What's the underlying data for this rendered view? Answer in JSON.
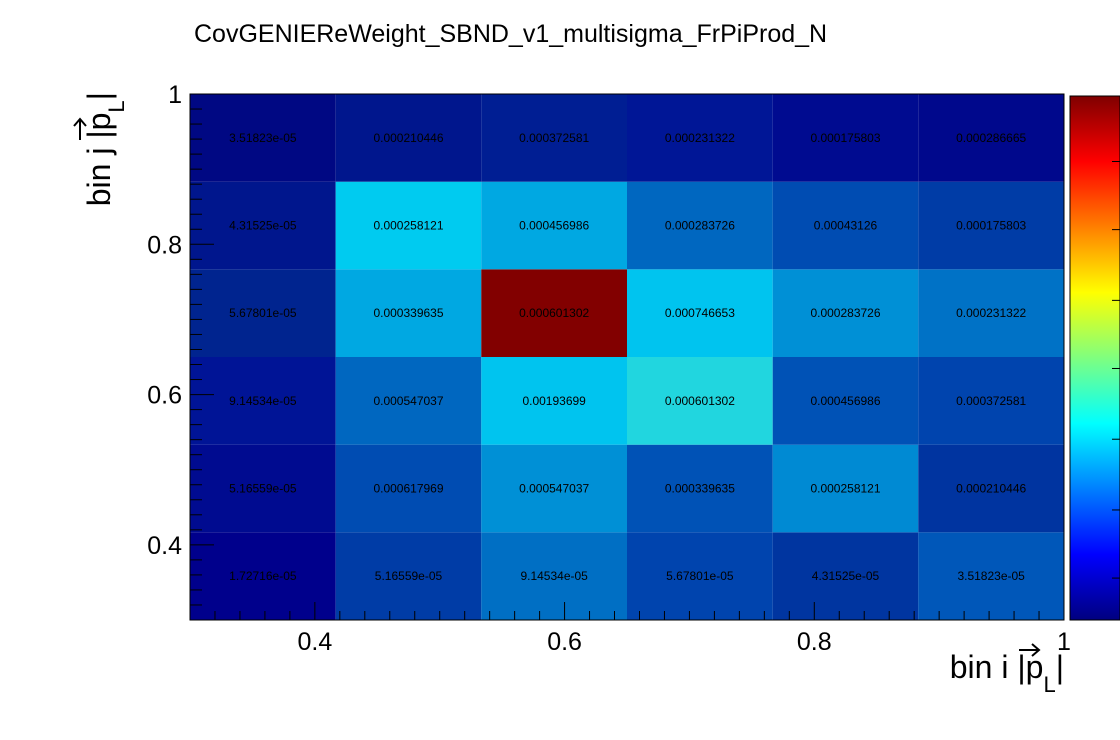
{
  "chart_data": {
    "type": "heatmap",
    "title": "CovGENIEReWeight_SBND_v1_multisigma_FrPiProd_N",
    "xlabel": {
      "main": "bin i |",
      "vec": "p",
      "sub": "L",
      "end": "|"
    },
    "ylabel": {
      "main": "bin j |",
      "vec": "p",
      "sub": "L",
      "end": "|"
    },
    "x_edges": [
      0.3,
      0.4167,
      0.5333,
      0.65,
      0.7667,
      0.8833,
      1.0
    ],
    "y_edges": [
      0.3,
      0.4167,
      0.5333,
      0.65,
      0.7667,
      0.8833,
      1.0
    ],
    "xlim": [
      0.3,
      1.0
    ],
    "ylim": [
      0.3,
      1.0
    ],
    "x_ticks": [
      {
        "value": 0.4,
        "label": "0.4"
      },
      {
        "value": 0.6,
        "label": "0.6"
      },
      {
        "value": 0.8,
        "label": "0.8"
      },
      {
        "value": 1.0,
        "label": "1"
      }
    ],
    "y_ticks": [
      {
        "value": 0.4,
        "label": "0.4"
      },
      {
        "value": 0.6,
        "label": "0.6"
      },
      {
        "value": 0.8,
        "label": "0.8"
      },
      {
        "value": 1.0,
        "label": "1"
      }
    ],
    "z_range": [
      0,
      0.002
    ],
    "values": [
      [
        1.72716e-05,
        5.16559e-05,
        9.14534e-05,
        5.67801e-05,
        4.31525e-05,
        3.51823e-05
      ],
      [
        5.16559e-05,
        0.000617969,
        0.000547037,
        0.000339635,
        0.000258121,
        0.000210446
      ],
      [
        9.14534e-05,
        0.000547037,
        0.00193699,
        0.000601302,
        0.000456986,
        0.000372581
      ],
      [
        5.67801e-05,
        0.000339635,
        0.000601302,
        0.000746653,
        0.000283726,
        0.000231322
      ],
      [
        4.31525e-05,
        0.000258121,
        0.000456986,
        0.000283726,
        0.00043126,
        0.000175803
      ],
      [
        3.51823e-05,
        0.000210446,
        0.000372581,
        0.000231322,
        0.000175803,
        0.000286665
      ]
    ],
    "cell_labels": [
      [
        "1.72716e-05",
        "5.16559e-05",
        "9.14534e-05",
        "5.67801e-05",
        "4.31525e-05",
        "3.51823e-05"
      ],
      [
        "5.16559e-05",
        "0.000617969",
        "0.000547037",
        "0.000339635",
        "0.000258121",
        "0.000210446"
      ],
      [
        "9.14534e-05",
        "0.000547037",
        "0.00193699",
        "0.000601302",
        "0.000456986",
        "0.000372581"
      ],
      [
        "5.67801e-05",
        "0.000339635",
        "0.000601302",
        "0.000746653",
        "0.000283726",
        "0.000231322"
      ],
      [
        "4.31525e-05",
        "0.000258121",
        "0.000456986",
        "0.000283726",
        "0.00043126",
        "0.000175803"
      ],
      [
        "3.51823e-05",
        "0.000210446",
        "0.000372581",
        "0.000231322",
        "0.000175803",
        "0.000286665"
      ]
    ],
    "colormap": [
      "#00007f",
      "#0000ff",
      "#007fff",
      "#00ffff",
      "#7fff7f",
      "#ffff00",
      "#ff7f00",
      "#ff0000",
      "#7f0000"
    ],
    "colors": {
      "cell_1_1": "#00008c",
      "cell_1_2": "#003ca6",
      "cell_1_3": "#006fc4",
      "cell_1_4": "#0044ae",
      "cell_1_5": "#0035a0",
      "cell_1_6": "#0057b9",
      "cell_2_1": "#000b90",
      "cell_2_2": "#004cb2",
      "cell_2_3": "#0090d6",
      "cell_2_4": "#0052b6",
      "cell_2_5": "#008ad3",
      "cell_2_6": "#0034a0",
      "cell_3_1": "#001496",
      "cell_3_2": "#0067c0",
      "cell_3_3": "#00c4ef",
      "cell_3_4": "#21d6df",
      "cell_3_5": "#0052b6",
      "cell_3_6": "#0044ae",
      "cell_4_1": "#00248f",
      "cell_4_2": "#00a8e2",
      "cell_4_3": "#820000",
      "cell_4_4": "#00c4ef",
      "cell_4_5": "#0090d6",
      "cell_4_6": "#0072c6",
      "cell_5_1": "#00168d",
      "cell_5_2": "#00cbf0",
      "cell_5_3": "#00a8e2",
      "cell_5_4": "#0067c0",
      "cell_5_5": "#004cb2",
      "cell_5_6": "#003ca6",
      "cell_6_1": "#000883",
      "cell_6_2": "#00168d",
      "cell_6_3": "#001e93",
      "cell_6_4": "#001696",
      "cell_6_5": "#000b90",
      "cell_6_6": "#00088c"
    },
    "grid": false,
    "legend": "colorbar-right"
  }
}
